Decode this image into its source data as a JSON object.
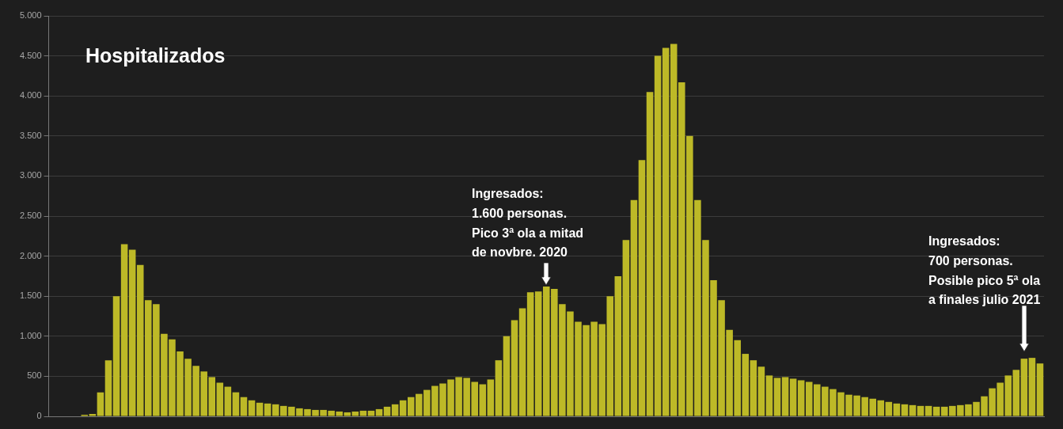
{
  "chart_data": {
    "type": "bar",
    "title": "Hospitalizados",
    "categories": [
      null,
      null,
      null,
      null,
      null,
      null,
      null,
      null,
      null,
      null,
      null,
      null,
      null,
      null,
      null,
      null,
      null,
      null,
      null,
      null,
      null,
      null,
      null,
      null,
      null,
      null,
      null,
      null,
      null,
      null,
      null,
      null,
      null,
      null,
      null,
      null,
      null,
      null,
      null,
      null,
      null,
      null,
      null,
      null,
      null,
      null,
      null,
      null,
      null,
      null,
      null,
      null,
      null,
      null,
      null,
      null,
      null,
      null,
      null,
      null,
      null,
      null,
      null,
      null,
      null,
      null,
      null,
      null,
      null,
      null,
      null,
      null,
      null,
      null,
      null,
      null,
      null,
      null,
      null,
      null,
      null,
      null,
      null,
      null,
      null,
      null,
      null,
      null,
      null,
      null,
      null,
      null,
      null,
      null,
      null,
      null,
      null,
      null,
      null,
      null,
      null,
      null,
      null,
      null,
      null,
      null,
      null,
      null,
      null,
      null,
      null,
      null,
      null,
      null,
      null,
      null,
      null,
      null,
      null,
      null,
      null,
      null,
      null,
      null,
      null
    ],
    "values": [
      null,
      null,
      null,
      null,
      20,
      30,
      300,
      700,
      1500,
      2150,
      2080,
      1890,
      1450,
      1400,
      1030,
      960,
      810,
      720,
      630,
      560,
      490,
      420,
      370,
      300,
      240,
      200,
      170,
      160,
      150,
      130,
      120,
      100,
      90,
      80,
      80,
      70,
      60,
      50,
      60,
      70,
      70,
      90,
      120,
      150,
      200,
      240,
      280,
      330,
      380,
      410,
      460,
      490,
      480,
      430,
      400,
      460,
      700,
      1000,
      1200,
      1350,
      1550,
      1560,
      1620,
      1590,
      1400,
      1310,
      1180,
      1140,
      1180,
      1150,
      1500,
      1750,
      2200,
      2700,
      3200,
      4050,
      4500,
      4600,
      4650,
      4170,
      3500,
      2700,
      2200,
      1700,
      1450,
      1080,
      950,
      780,
      700,
      620,
      510,
      480,
      490,
      470,
      450,
      430,
      400,
      370,
      340,
      300,
      270,
      260,
      240,
      220,
      200,
      180,
      160,
      150,
      140,
      130,
      130,
      120,
      120,
      130,
      140,
      150,
      180,
      250,
      350,
      420,
      510,
      580,
      720,
      730,
      660
    ],
    "color": "#bdb927",
    "ylim": [
      0,
      5000
    ],
    "yticks": [
      {
        "value": 0,
        "label": "0"
      },
      {
        "value": 500,
        "label": "500"
      },
      {
        "value": 1000,
        "label": "1.000"
      },
      {
        "value": 1500,
        "label": "1.500"
      },
      {
        "value": 2000,
        "label": "2.000"
      },
      {
        "value": 2500,
        "label": "2.500"
      },
      {
        "value": 3000,
        "label": "3.000"
      },
      {
        "value": 3500,
        "label": "3.500"
      },
      {
        "value": 4000,
        "label": "4.000"
      },
      {
        "value": 4500,
        "label": "4.500"
      },
      {
        "value": 5000,
        "label": "5.000"
      }
    ],
    "grid": "y",
    "annotations": [
      "Ingresados:\n1.600 personas.\nPico 3ª ola a mitad\nde novbre. 2020",
      "Ingresados:\n700 personas.\nPosible pico 5ª ola\na finales julio 2021"
    ]
  }
}
